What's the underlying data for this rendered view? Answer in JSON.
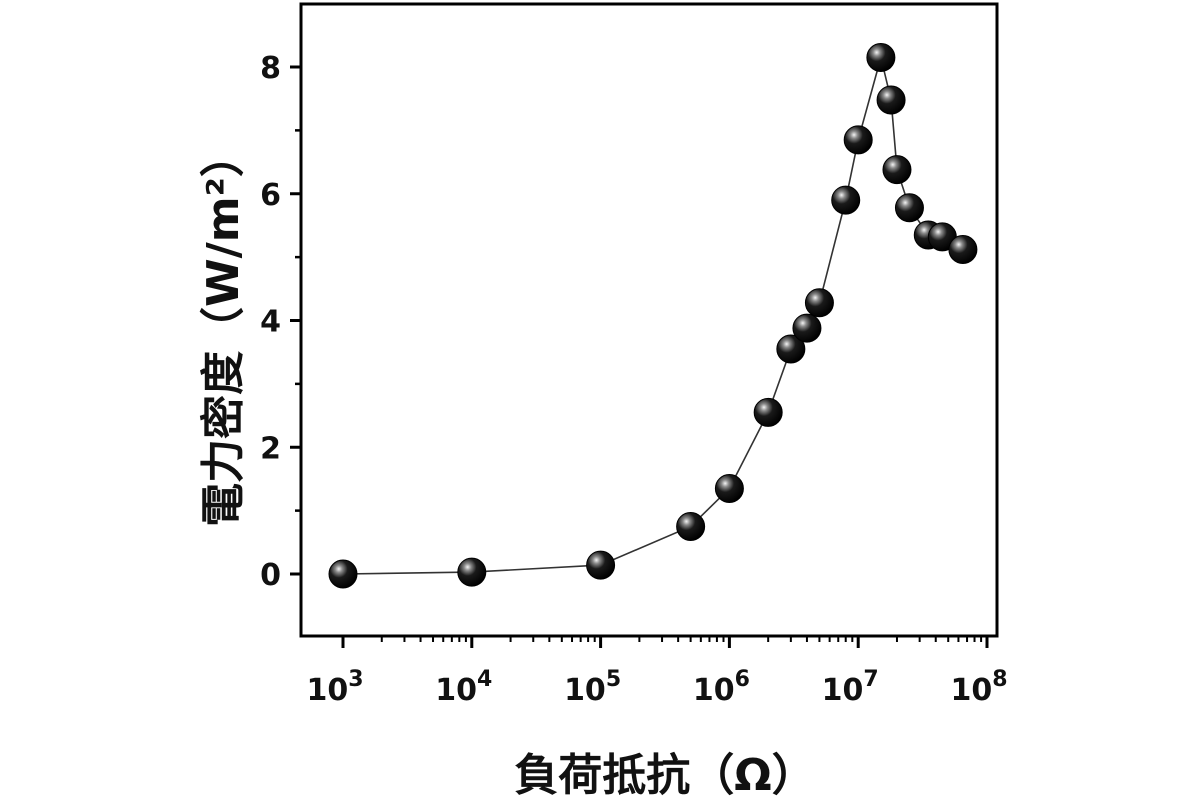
{
  "chart_data": {
    "type": "scatter",
    "xscale": "log",
    "xlabel": "負荷抵抗（Ω）",
    "ylabel": "電力密度（W/m²）",
    "xlim": [
      1000,
      100000000
    ],
    "ylim": [
      -0.95,
      8.95
    ],
    "x_ticks": [
      {
        "value": 1000,
        "base": "10",
        "exp": "3"
      },
      {
        "value": 10000,
        "base": "10",
        "exp": "4"
      },
      {
        "value": 100000,
        "base": "10",
        "exp": "5"
      },
      {
        "value": 1000000,
        "base": "10",
        "exp": "6"
      },
      {
        "value": 10000000,
        "base": "10",
        "exp": "7"
      },
      {
        "value": 100000000,
        "base": "10",
        "exp": "8"
      }
    ],
    "y_ticks": [
      0,
      2,
      4,
      6,
      8
    ],
    "connected": true,
    "grid": false,
    "series": [
      {
        "x": [
          1000,
          10000,
          100000,
          500000,
          1000000,
          2000000,
          3000000,
          4000000,
          5000000,
          8000000,
          10000000,
          15000000,
          18000000,
          20000000,
          25000000,
          35000000,
          45000000,
          65000000
        ],
        "y": [
          0,
          0.03,
          0.14,
          0.75,
          1.35,
          2.55,
          3.55,
          3.88,
          4.28,
          5.9,
          6.85,
          8.15,
          7.48,
          6.38,
          5.78,
          5.35,
          5.32,
          5.12
        ]
      }
    ],
    "colors": {
      "marker": "#111111",
      "line": "#333333",
      "axis": "#000000"
    }
  }
}
